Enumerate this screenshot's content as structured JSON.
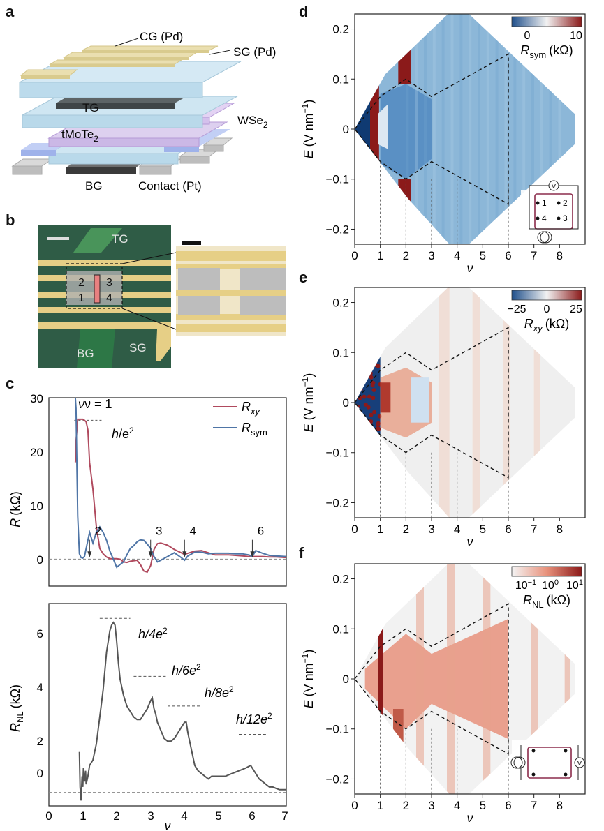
{
  "panel_labels": {
    "a": "a",
    "b": "b",
    "c": "c",
    "d": "d",
    "e": "e",
    "f": "f"
  },
  "panel_a": {
    "labels": {
      "cg": "CG (Pd)",
      "sg": "SG (Pd)",
      "tg": "TG",
      "wse2_main": "WSe",
      "wse2_sub": "2",
      "tmote2_main": "tMoTe",
      "tmote2_sub": "2",
      "bg": "BG",
      "contact": "Contact (Pt)"
    },
    "colors": {
      "gate_layer": "#b9d9ea",
      "pd": "#eadfb0",
      "tg": "#5d6466",
      "wse2": "#cbb8e6",
      "mote2": "#9fb2ea",
      "contact": "#c9c9c9"
    }
  },
  "panel_b": {
    "labels": {
      "tg": "TG",
      "bg": "BG",
      "sg": "SG"
    },
    "contacts": [
      "2",
      "3",
      "1",
      "4"
    ],
    "colors": {
      "substrate": "#2f5c46",
      "leads": "#e6cf86",
      "pad": "#bdbdbd",
      "sample": "#e88080"
    }
  },
  "panel_c": {
    "top": {
      "ylabel_main": "R",
      "ylabel_unit": "(kΩ)",
      "yticks": [
        "30",
        "20",
        "10",
        "0"
      ],
      "nu_label": "ν = 1",
      "h_e2_h": "h",
      "h_e2_slash": "/e",
      "h_e2_sup": "2",
      "legend": [
        {
          "main": "R",
          "sub": "xy",
          "color": "#b04a5e"
        },
        {
          "main": "R",
          "sub": "sym",
          "color": "#4f75a6"
        }
      ],
      "arrows": [
        "2",
        "3",
        "4",
        "6"
      ]
    },
    "bottom": {
      "ylabel_main": "R",
      "ylabel_sub": "NL",
      "ylabel_unit": "(kΩ)",
      "yticks": [
        "6",
        "4",
        "2",
        "0"
      ],
      "quanta": [
        {
          "pre": "h/4e",
          "sup": "2"
        },
        {
          "pre": "h/6e",
          "sup": "2"
        },
        {
          "pre": "h/8e",
          "sup": "2"
        },
        {
          "pre": "h/12e",
          "sup": "2"
        }
      ],
      "xticks": [
        "0",
        "1",
        "2",
        "3",
        "4",
        "5",
        "6",
        "7"
      ],
      "xlabel": "ν"
    }
  },
  "panel_d": {
    "colorbar_ticks": [
      "0",
      "10"
    ],
    "colorbar_label_main": "R",
    "colorbar_label_sub": "sym",
    "colorbar_label_unit": "(kΩ)",
    "yticks": [
      "0.2",
      "0.1",
      "0",
      "−0.1",
      "−0.2"
    ],
    "xticks": [
      "0",
      "1",
      "2",
      "3",
      "4",
      "5",
      "6",
      "7",
      "8"
    ],
    "ylabel": "E (V nm",
    "ylabel_sup": "−1",
    "ylabel_close": ")",
    "xlabel": "ν",
    "inset_contacts": [
      "1",
      "2",
      "4",
      "3"
    ],
    "inset_meter": "V"
  },
  "panel_e": {
    "colorbar_ticks": [
      "−25",
      "0",
      "25"
    ],
    "colorbar_label_main": "R",
    "colorbar_label_sub": "xy",
    "colorbar_label_unit": "(kΩ)",
    "yticks": [
      "0.2",
      "0.1",
      "0",
      "−0.1",
      "−0.2"
    ],
    "xticks": [
      "0",
      "1",
      "2",
      "3",
      "4",
      "5",
      "6",
      "7",
      "8"
    ],
    "ylabel": "E (V nm",
    "ylabel_sup": "−1",
    "ylabel_close": ")",
    "xlabel": "ν"
  },
  "panel_f": {
    "colorbar_ticks": [
      {
        "base": "10",
        "exp": "−1"
      },
      {
        "base": "10",
        "exp": "0"
      },
      {
        "base": "10",
        "exp": "1"
      }
    ],
    "colorbar_label_main": "R",
    "colorbar_label_sub": "NL",
    "colorbar_label_unit": "(kΩ)",
    "yticks": [
      "0.2",
      "0.1",
      "0",
      "−0.1",
      "−0.2"
    ],
    "xticks": [
      "0",
      "1",
      "2",
      "3",
      "4",
      "5",
      "6",
      "7",
      "8"
    ],
    "ylabel": "E (V nm",
    "ylabel_sup": "−1",
    "ylabel_close": ")",
    "xlabel": "ν",
    "inset_meter": "V"
  },
  "chart_data": [
    {
      "id": "c-top",
      "type": "line",
      "title": "",
      "xlabel": "ν",
      "ylabel": "R (kΩ)",
      "xlim": [
        0,
        7
      ],
      "ylim": [
        -5,
        30
      ],
      "series": [
        {
          "name": "R_xy",
          "color": "#b04a5e",
          "x": [
            0.78,
            0.8,
            0.85,
            0.9,
            0.95,
            1.0,
            1.05,
            1.1,
            1.15,
            1.2,
            1.3,
            1.4,
            1.5,
            1.6,
            1.7,
            1.8,
            1.9,
            2.0,
            2.1,
            2.2,
            2.3,
            2.4,
            2.5,
            2.6,
            2.7,
            2.8,
            2.9,
            3.0,
            3.1,
            3.2,
            3.3,
            3.5,
            3.7,
            3.9,
            4.0,
            4.1,
            4.3,
            4.5,
            4.7,
            4.9,
            5.1,
            5.3,
            5.5,
            5.7,
            5.9,
            6.1,
            6.3,
            6.5,
            6.7,
            7.0
          ],
          "y": [
            18,
            22,
            26,
            26,
            26,
            26,
            25.8,
            25.5,
            24,
            18,
            13,
            6,
            2,
            1,
            0.4,
            0.1,
            0.1,
            0.1,
            0,
            -0.5,
            -0.6,
            -0.4,
            -0.3,
            -0.2,
            -1,
            -2.2,
            -2.4,
            -1.2,
            1.8,
            2.9,
            3,
            2.6,
            1.8,
            1.2,
            0.9,
            1.1,
            1.5,
            1.6,
            1.2,
            0.8,
            0.8,
            0.8,
            0.7,
            0.6,
            0.5,
            0.5,
            0.5,
            0.4,
            0.4,
            0.3
          ]
        },
        {
          "name": "R_sym",
          "color": "#4f75a6",
          "x": [
            0.78,
            0.8,
            0.82,
            0.85,
            0.9,
            0.95,
            1.0,
            1.05,
            1.1,
            1.2,
            1.3,
            1.4,
            1.5,
            1.6,
            1.7,
            1.8,
            1.9,
            2.0,
            2.1,
            2.2,
            2.3,
            2.4,
            2.5,
            2.6,
            2.7,
            2.8,
            2.9,
            3.0,
            3.1,
            3.2,
            3.3,
            3.5,
            3.7,
            3.9,
            4.0,
            4.1,
            4.3,
            4.5,
            4.7,
            4.9,
            5.1,
            5.3,
            5.5,
            5.7,
            5.9,
            6.0,
            6.1,
            6.3,
            6.5,
            6.7,
            7.0
          ],
          "y": [
            30,
            28,
            20,
            8,
            1,
            0.3,
            0.2,
            0.5,
            2,
            5,
            3,
            5,
            6,
            5,
            3.5,
            1.5,
            0,
            -1.5,
            -1,
            -0.5,
            0.8,
            2,
            2.5,
            3.2,
            3.6,
            3.5,
            2.8,
            2,
            0.5,
            -0.5,
            -0.2,
            0.5,
            1.2,
            0.3,
            -0.2,
            0.6,
            1.3,
            1.3,
            1,
            1.1,
            1.1,
            1.1,
            1,
            1,
            0.8,
            0.5,
            1.6,
            1.1,
            0.7,
            0.6,
            0.5
          ]
        }
      ],
      "annotations": [
        "ν = 1",
        "h/e²",
        "2",
        "3",
        "4",
        "6"
      ]
    },
    {
      "id": "c-bottom",
      "type": "line",
      "title": "",
      "xlabel": "ν",
      "ylabel": "R_NL (kΩ)",
      "xlim": [
        0,
        7
      ],
      "ylim": [
        -0.5,
        7
      ],
      "series": [
        {
          "name": "R_NL",
          "color": "#555555",
          "x": [
            0.9,
            0.92,
            0.95,
            0.98,
            1.0,
            1.02,
            1.05,
            1.08,
            1.1,
            1.15,
            1.2,
            1.3,
            1.4,
            1.5,
            1.6,
            1.7,
            1.8,
            1.85,
            1.9,
            1.95,
            2.0,
            2.05,
            2.1,
            2.2,
            2.3,
            2.4,
            2.5,
            2.6,
            2.7,
            2.8,
            2.9,
            3.0,
            3.05,
            3.1,
            3.15,
            3.2,
            3.3,
            3.4,
            3.5,
            3.6,
            3.7,
            3.8,
            3.9,
            4.0,
            4.05,
            4.1,
            4.2,
            4.3,
            4.4,
            4.5,
            4.6,
            4.7,
            4.8,
            4.9,
            5.0,
            5.2,
            5.4,
            5.6,
            5.8,
            5.95,
            6.0,
            6.1,
            6.2,
            6.3,
            6.4,
            6.5,
            6.6,
            6.7,
            6.8,
            7.0
          ],
          "y": [
            1.5,
            0.2,
            -0.3,
            0.6,
            0.2,
            0.9,
            0.4,
            0.8,
            0.3,
            0.6,
            1.0,
            1.2,
            1.8,
            2.8,
            3.8,
            5.2,
            6.0,
            6.2,
            6.3,
            6.2,
            5.6,
            4.8,
            4.2,
            3.6,
            3.2,
            3.0,
            2.8,
            2.7,
            2.7,
            2.9,
            3.1,
            3.4,
            3.5,
            3.1,
            2.9,
            2.6,
            2.3,
            2.0,
            1.9,
            1.9,
            2.0,
            2.2,
            2.4,
            2.6,
            2.6,
            2.2,
            1.6,
            1.0,
            0.8,
            0.7,
            0.6,
            0.5,
            0.6,
            0.6,
            0.6,
            0.6,
            0.7,
            0.8,
            0.9,
            1.0,
            0.9,
            0.7,
            0.5,
            0.4,
            0.3,
            0.2,
            0.2,
            0.15,
            0.1,
            0.1
          ]
        }
      ],
      "annotations": [
        "h/4e²",
        "h/6e²",
        "h/8e²",
        "h/12e²"
      ]
    },
    {
      "id": "d",
      "type": "heatmap",
      "title": "",
      "xlabel": "ν",
      "ylabel": "E (V nm⁻¹)",
      "xlim": [
        0,
        9
      ],
      "ylim": [
        -0.23,
        0.23
      ],
      "colorbar": {
        "label": "R_sym (kΩ)",
        "range": [
          0,
          10
        ],
        "colors": [
          "#1f4f8b",
          "#f2f2f2",
          "#8b1a1a"
        ]
      },
      "guides_nu": [
        1,
        2,
        3,
        4,
        6
      ],
      "phase_boundary": [
        [
          0,
          0
        ],
        [
          1,
          0.065
        ],
        [
          2,
          0.1
        ],
        [
          3,
          0.065
        ],
        [
          6,
          0.15
        ],
        [
          6,
          -0.15
        ],
        [
          3,
          -0.065
        ],
        [
          2,
          -0.1
        ],
        [
          1,
          -0.065
        ],
        [
          0,
          0
        ]
      ]
    },
    {
      "id": "e",
      "type": "heatmap",
      "title": "",
      "xlabel": "ν",
      "ylabel": "E (V nm⁻¹)",
      "xlim": [
        0,
        9
      ],
      "ylim": [
        -0.23,
        0.23
      ],
      "colorbar": {
        "label": "R_xy (kΩ)",
        "range": [
          -25,
          25
        ],
        "colors": [
          "#1f4f8b",
          "#f2f2f2",
          "#8b1a1a"
        ]
      },
      "guides_nu": [
        1,
        2,
        3,
        4,
        6
      ],
      "phase_boundary": [
        [
          0,
          0
        ],
        [
          1,
          0.065
        ],
        [
          2,
          0.1
        ],
        [
          3,
          0.065
        ],
        [
          6,
          0.15
        ],
        [
          6,
          -0.15
        ],
        [
          3,
          -0.065
        ],
        [
          2,
          -0.1
        ],
        [
          1,
          -0.065
        ],
        [
          0,
          0
        ]
      ]
    },
    {
      "id": "f",
      "type": "heatmap",
      "title": "",
      "xlabel": "ν",
      "ylabel": "E (V nm⁻¹)",
      "xlim": [
        0,
        9
      ],
      "ylim": [
        -0.23,
        0.23
      ],
      "colorbar": {
        "label": "R_NL (kΩ)",
        "range": [
          0.1,
          10
        ],
        "scale": "log",
        "colors": [
          "#f4f4f4",
          "#e8927c",
          "#8b1a1a"
        ]
      },
      "guides_nu": [
        1,
        2,
        3,
        4,
        6
      ],
      "phase_boundary": [
        [
          0,
          0
        ],
        [
          1,
          0.065
        ],
        [
          2,
          0.1
        ],
        [
          3,
          0.065
        ],
        [
          6,
          0.15
        ],
        [
          6,
          -0.15
        ],
        [
          3,
          -0.065
        ],
        [
          2,
          -0.1
        ],
        [
          1,
          -0.065
        ],
        [
          0,
          0
        ]
      ]
    }
  ]
}
